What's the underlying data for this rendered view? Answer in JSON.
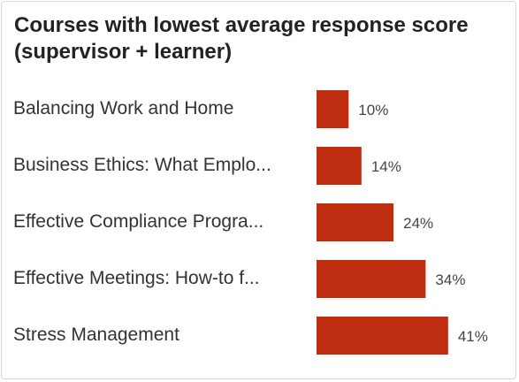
{
  "chart_data": {
    "type": "bar",
    "orientation": "horizontal",
    "title": "Courses with lowest average response score (supervisor + learner)",
    "categories": [
      "Balancing Work and Home",
      "Business Ethics: What Emplo...",
      "Effective Compliance Progra...",
      "Effective Meetings: How-to f...",
      "Stress Management"
    ],
    "values": [
      10,
      14,
      24,
      34,
      41
    ],
    "value_labels": [
      "10%",
      "14%",
      "24%",
      "34%",
      "41%"
    ],
    "unit": "%",
    "bar_color": "#BF2D10",
    "grid": false,
    "legend": "none"
  }
}
